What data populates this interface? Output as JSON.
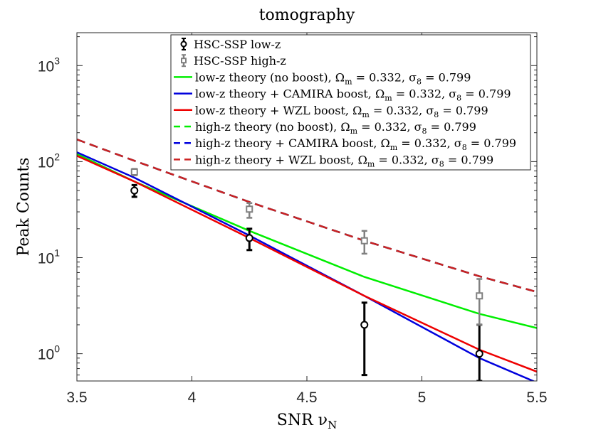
{
  "chart_data": {
    "type": "line",
    "title": "tomography",
    "xlabel": "SNR ν_N",
    "ylabel": "Peak Counts",
    "xlim": [
      3.5,
      5.5
    ],
    "ylim": [
      0.52,
      2200
    ],
    "yscale": "log",
    "grid": false,
    "legend_position": "top-right",
    "x_ticks": [
      3.5,
      4,
      4.5,
      5,
      5.5
    ],
    "x_tick_labels": [
      "3.5",
      "4",
      "4.5",
      "5",
      "5.5"
    ],
    "y_ticks": [
      1,
      10,
      100,
      1000
    ],
    "y_tick_labels": [
      {
        "base": "10",
        "exp": "0"
      },
      {
        "base": "10",
        "exp": "1"
      },
      {
        "base": "10",
        "exp": "2"
      },
      {
        "base": "10",
        "exp": "3"
      }
    ],
    "points": [
      {
        "name": "HSC-SSP low-z",
        "marker": "circle",
        "color": "#000000",
        "x": [
          3.75,
          4.25,
          4.75,
          5.25
        ],
        "y": [
          50,
          16,
          2,
          1
        ],
        "yerr_low": [
          43,
          12,
          0.6,
          0.52
        ],
        "yerr_high": [
          57,
          20,
          3.4,
          2
        ]
      },
      {
        "name": "HSC-SSP high-z",
        "marker": "square",
        "color": "#808080",
        "x": [
          3.75,
          4.25,
          4.75,
          5.25
        ],
        "y": [
          78,
          32,
          15,
          4
        ],
        "yerr_low": [
          72,
          26,
          11,
          2
        ],
        "yerr_high": [
          84,
          37,
          19,
          6
        ]
      }
    ],
    "series": [
      {
        "name": "low-z theory (no boost), Ω_m = 0.332, σ_8 = 0.799",
        "color": "#00ee00",
        "dash": "solid",
        "x": [
          3.5,
          3.75,
          4.25,
          4.75,
          5.25,
          5.5
        ],
        "y": [
          120,
          62,
          19,
          6.3,
          2.6,
          1.85
        ]
      },
      {
        "name": "low-z theory + CAMIRA boost, Ω_m = 0.332, σ_8 = 0.799",
        "color": "#0000dd",
        "dash": "solid",
        "x": [
          3.5,
          3.75,
          4.25,
          4.75,
          5.25,
          5.5
        ],
        "y": [
          125,
          68,
          17,
          4.0,
          0.9,
          0.5
        ]
      },
      {
        "name": "low-z theory + WZL boost, Ω_m = 0.332, σ_8 = 0.799",
        "color": "#ee0000",
        "dash": "solid",
        "x": [
          3.5,
          3.75,
          4.25,
          4.75,
          5.25,
          5.5
        ],
        "y": [
          115,
          62,
          16,
          4.0,
          1.1,
          0.65
        ]
      },
      {
        "name": "high-z theory (no boost), Ω_m = 0.332, σ_8 = 0.799",
        "color": "#00ee00",
        "dash": "dashed",
        "x": [
          3.5,
          3.75,
          4.25,
          4.75,
          5.25,
          5.5
        ],
        "y": [
          170,
          102,
          38,
          15,
          6.4,
          4.4
        ]
      },
      {
        "name": "high-z theory + CAMIRA boost, Ω_m = 0.332, σ_8 = 0.799",
        "color": "#0000dd",
        "dash": "dashed",
        "x": [
          3.5,
          3.75,
          4.25,
          4.75,
          5.25,
          5.5
        ],
        "y": [
          170,
          102,
          38,
          15,
          6.4,
          4.4
        ]
      },
      {
        "name": "high-z theory + WZL boost, Ω_m = 0.332, σ_8 = 0.799",
        "color": "#cc2222",
        "dash": "dashed",
        "x": [
          3.5,
          3.75,
          4.25,
          4.75,
          5.25,
          5.5
        ],
        "y": [
          170,
          102,
          38,
          15,
          6.4,
          4.4
        ]
      }
    ]
  },
  "legend": [
    {
      "kind": "point",
      "marker": "circle",
      "color": "#000000",
      "text": "HSC-SSP low-z"
    },
    {
      "kind": "point",
      "marker": "square",
      "color": "#808080",
      "text": "HSC-SSP high-z"
    },
    {
      "kind": "line",
      "color": "#00ee00",
      "dash": "solid",
      "text": "low-z theory (no boost), Ω",
      "sub1": "m",
      "mid": " = 0.332, σ",
      "sub2": "8",
      "tail": " = 0.799"
    },
    {
      "kind": "line",
      "color": "#0000dd",
      "dash": "solid",
      "text": "low-z theory + CAMIRA boost, Ω",
      "sub1": "m",
      "mid": " = 0.332, σ",
      "sub2": "8",
      "tail": " = 0.799"
    },
    {
      "kind": "line",
      "color": "#ee0000",
      "dash": "solid",
      "text": "low-z theory + WZL boost, Ω",
      "sub1": "m",
      "mid": " = 0.332, σ",
      "sub2": "8",
      "tail": " = 0.799"
    },
    {
      "kind": "line",
      "color": "#00ee00",
      "dash": "dashed",
      "text": "high-z theory (no boost), Ω",
      "sub1": "m",
      "mid": " = 0.332, σ",
      "sub2": "8",
      "tail": " = 0.799"
    },
    {
      "kind": "line",
      "color": "#0000dd",
      "dash": "dashed",
      "text": "high-z theory + CAMIRA boost, Ω",
      "sub1": "m",
      "mid": " = 0.332, σ",
      "sub2": "8",
      "tail": " = 0.799"
    },
    {
      "kind": "line",
      "color": "#cc2222",
      "dash": "dashed",
      "text": "high-z theory + WZL boost, Ω",
      "sub1": "m",
      "mid": " = 0.332, σ",
      "sub2": "8",
      "tail": " = 0.799"
    }
  ],
  "xlabel_parts": {
    "main": "SNR ν",
    "sub": "N"
  }
}
